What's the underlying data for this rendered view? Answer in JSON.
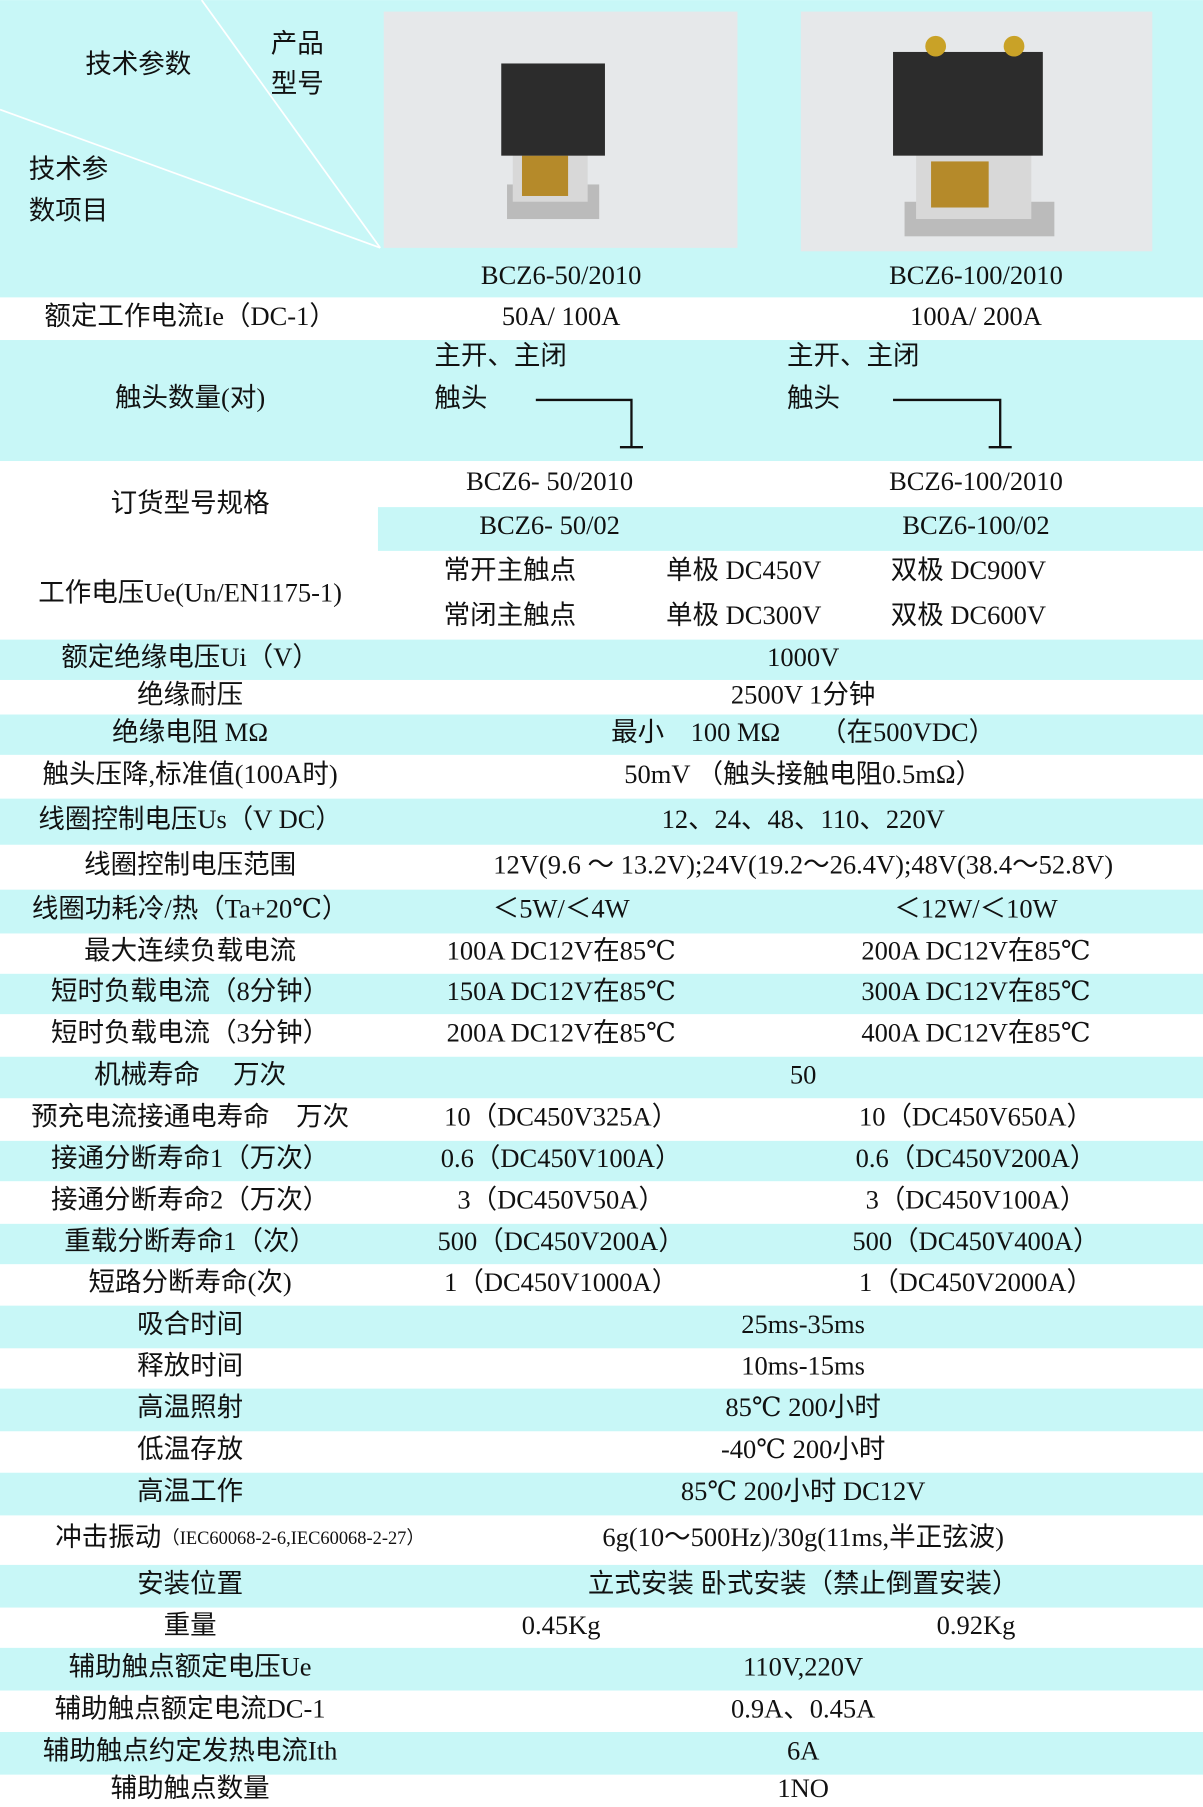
{
  "header": {
    "param_label": "技术参数",
    "product_label": [
      "产品",
      "型号"
    ],
    "item_label": [
      "技术参",
      "数项目"
    ],
    "models": [
      "BCZ6-50/2010",
      "BCZ6-100/2010"
    ]
  },
  "rows": [
    {
      "label": "额定工作电流Ie（DC-1）",
      "values": [
        "50A/ 100A",
        "100A/ 200A"
      ]
    },
    {
      "label": "触头数量(对)",
      "values": [
        {
          "lines": [
            "主开、主闭",
            "触头"
          ]
        },
        {
          "lines": [
            "主开、主闭",
            "触头"
          ]
        }
      ]
    },
    {
      "label": "订货型号规格",
      "values": [
        [
          "BCZ6- 50/2010",
          "BCZ6-100/2010"
        ],
        [
          "BCZ6- 50/02",
          "BCZ6-100/02"
        ]
      ]
    },
    {
      "label": "工作电压Ue(Un/EN1175-1)",
      "values": [
        [
          "常开主触点",
          "单极 DC450V",
          "双极 DC900V"
        ],
        [
          "常闭主触点",
          "单极 DC300V",
          "双极 DC600V"
        ]
      ]
    },
    {
      "label": "额定绝缘电压Ui（V）",
      "values": [
        "1000V"
      ]
    },
    {
      "label": "绝缘耐压",
      "values": [
        "2500V 1分钟"
      ]
    },
    {
      "label": "绝缘电阻 MΩ",
      "values": [
        "最小　100 MΩ　　（在500VDC）"
      ]
    },
    {
      "label": "触头压降,标准值(100A时)",
      "values": [
        "50mV （触头接触电阻0.5mΩ）"
      ]
    },
    {
      "label": "线圈控制电压Us（V DC）",
      "values": [
        "12、24、48、110、220V"
      ]
    },
    {
      "label": "线圈控制电压范围",
      "values": [
        "12V(9.6 ～ 13.2V);24V(19.2～26.4V);48V(38.4～52.8V)"
      ]
    },
    {
      "label": "线圈功耗冷/热（Ta+20℃）",
      "values": [
        "＜5W/＜4W",
        "＜12W/＜10W"
      ]
    },
    {
      "label": "最大连续负载电流",
      "values": [
        "100A DC12V在85℃",
        "200A DC12V在85℃"
      ]
    },
    {
      "label": "短时负载电流（8分钟）",
      "values": [
        "150A DC12V在85℃",
        "300A DC12V在85℃"
      ]
    },
    {
      "label": "短时负载电流（3分钟）",
      "values": [
        "200A DC12V在85℃",
        "400A DC12V在85℃"
      ]
    },
    {
      "label": "机械寿命　 万次",
      "values": [
        "50"
      ]
    },
    {
      "label": "预充电流接通电寿命　万次",
      "values": [
        "10（DC450V325A）",
        "10（DC450V650A）"
      ]
    },
    {
      "label": "接通分断寿命1（万次）",
      "values": [
        "0.6（DC450V100A）",
        "0.6（DC450V200A）"
      ]
    },
    {
      "label": "接通分断寿命2（万次）",
      "values": [
        "3（DC450V50A）",
        "3（DC450V100A）"
      ]
    },
    {
      "label": "重载分断寿命1（次）",
      "values": [
        "500（DC450V200A）",
        "500（DC450V400A）"
      ]
    },
    {
      "label": "短路分断寿命(次)",
      "values": [
        "1（DC450V1000A）",
        "1（DC450V2000A）"
      ]
    },
    {
      "label": "吸合时间",
      "values": [
        "25ms-35ms"
      ]
    },
    {
      "label": "释放时间",
      "values": [
        "10ms-15ms"
      ]
    },
    {
      "label": "高温照射",
      "values": [
        "85℃ 200小时"
      ]
    },
    {
      "label": "低温存放",
      "values": [
        "-40℃ 200小时"
      ]
    },
    {
      "label": "高温工作",
      "values": [
        "85℃ 200小时 DC12V"
      ]
    },
    {
      "label": "冲击振动",
      "label_note": "（IEC60068-2-6,IEC60068-2-27）",
      "values": [
        "6g(10～500Hz)/30g(11ms,半正弦波)"
      ]
    },
    {
      "label": "安装位置",
      "values": [
        "立式安装 卧式安装（禁止倒置安装）"
      ]
    },
    {
      "label": "重量",
      "values": [
        "0.45Kg",
        "0.92Kg"
      ]
    },
    {
      "label": "辅助触点额定电压Ue",
      "values": [
        "110V,220V"
      ]
    },
    {
      "label": "辅助触点额定电流DC-1",
      "values": [
        "0.9A、0.45A"
      ]
    },
    {
      "label": "辅助触点约定发热电流Ith",
      "values": [
        "6A"
      ]
    },
    {
      "label": "辅助触点数量",
      "values": [
        "1NO"
      ]
    }
  ]
}
